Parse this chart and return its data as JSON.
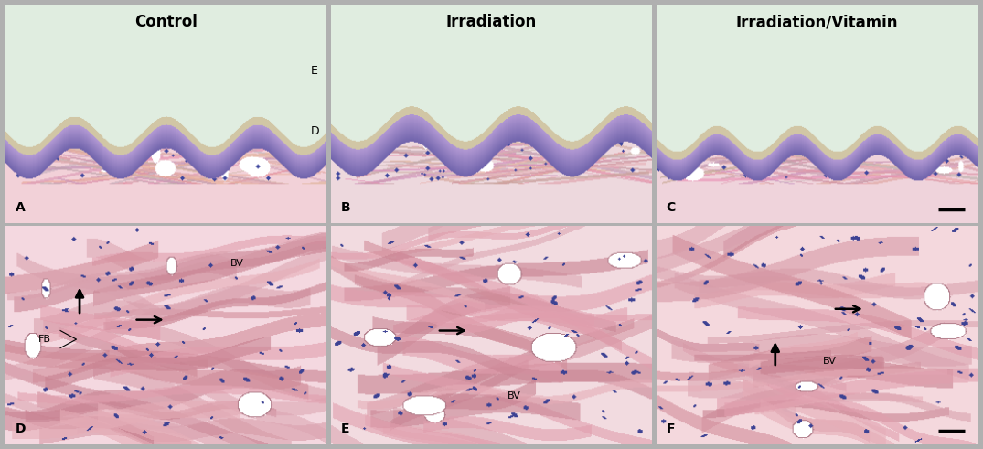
{
  "figure_width": 10.75,
  "figure_height": 4.91,
  "background_color": "#b0b0b0",
  "titles": [
    "Control",
    "Irradiation",
    "Irradiation/Vitamin"
  ],
  "title_fontsize": 12,
  "title_fontweight": "bold",
  "panel_labels_top": [
    "A",
    "B",
    "C"
  ],
  "panel_labels_bottom": [
    "D",
    "E",
    "F"
  ],
  "label_fontsize": 10,
  "label_fontweight": "bold",
  "annotation_fontsize": 8,
  "border_color": "#444444",
  "border_width": 0.8,
  "dermis_pink": "#f2c8ce",
  "epidermis_purple": "#8878b8",
  "fiber_colors": [
    "#e8a8b0",
    "#d89098",
    "#cc8090",
    "#e0b0b8",
    "#ebb8be"
  ],
  "nuclei_color": "#404898",
  "white_space": "#ffffff",
  "scale_bar_color": "#000000"
}
